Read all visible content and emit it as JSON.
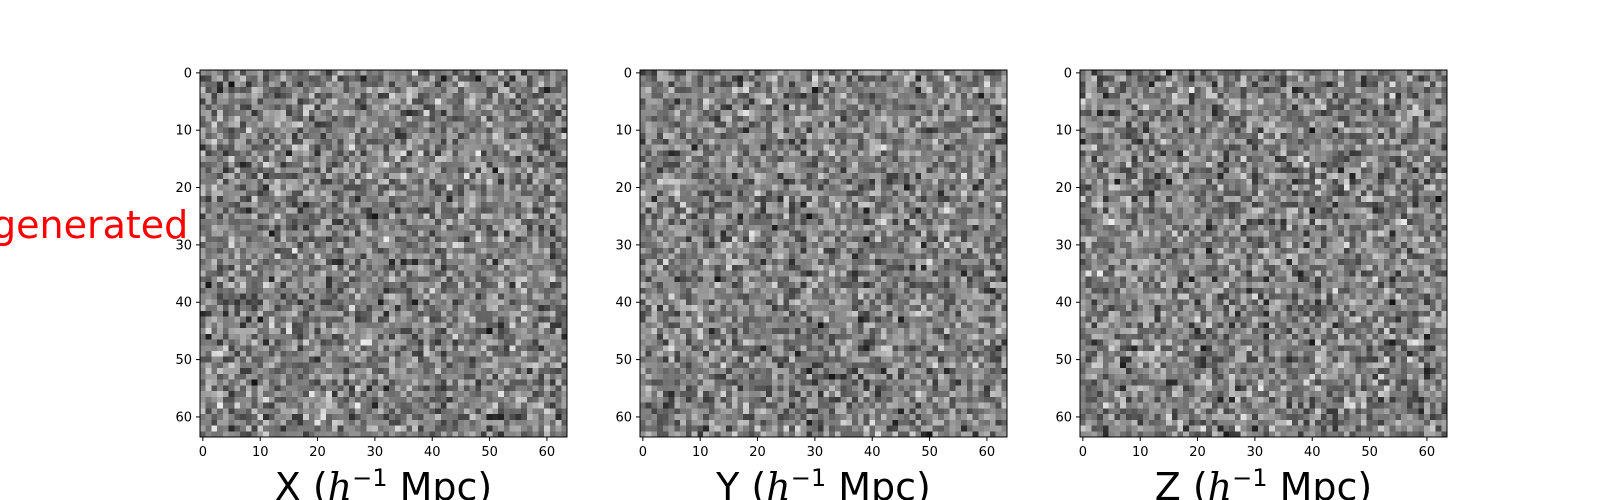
{
  "row_label": "generated",
  "colors": {
    "row_label": "#ff0000",
    "frame": "#000000"
  },
  "chart_data": [
    {
      "type": "heatmap",
      "colormap": "gray",
      "grid_size": [
        64,
        64
      ],
      "xlim": [
        -0.5,
        63.5
      ],
      "ylim": [
        63.5,
        -0.5
      ],
      "xticks": [
        0,
        10,
        20,
        30,
        40,
        50,
        60
      ],
      "yticks": [
        0,
        10,
        20,
        30,
        40,
        50,
        60
      ],
      "xlabel": {
        "prefix": "X (",
        "var": "h",
        "exp": "−1",
        "suffix": " Mpc)"
      },
      "ylabel": "",
      "grid": false,
      "seed": 11
    },
    {
      "type": "heatmap",
      "colormap": "gray",
      "grid_size": [
        64,
        64
      ],
      "xlim": [
        -0.5,
        63.5
      ],
      "ylim": [
        63.5,
        -0.5
      ],
      "xticks": [
        0,
        10,
        20,
        30,
        40,
        50,
        60
      ],
      "yticks": [
        0,
        10,
        20,
        30,
        40,
        50,
        60
      ],
      "xlabel": {
        "prefix": "Y (",
        "var": "h",
        "exp": "−1",
        "suffix": " Mpc)"
      },
      "ylabel": "",
      "grid": false,
      "seed": 29
    },
    {
      "type": "heatmap",
      "colormap": "gray",
      "grid_size": [
        64,
        64
      ],
      "xlim": [
        -0.5,
        63.5
      ],
      "ylim": [
        63.5,
        -0.5
      ],
      "xticks": [
        0,
        10,
        20,
        30,
        40,
        50,
        60
      ],
      "yticks": [
        0,
        10,
        20,
        30,
        40,
        50,
        60
      ],
      "xlabel": {
        "prefix": "Z (",
        "var": "h",
        "exp": "−1",
        "suffix": " Mpc)"
      },
      "ylabel": "",
      "grid": false,
      "seed": 47
    }
  ]
}
